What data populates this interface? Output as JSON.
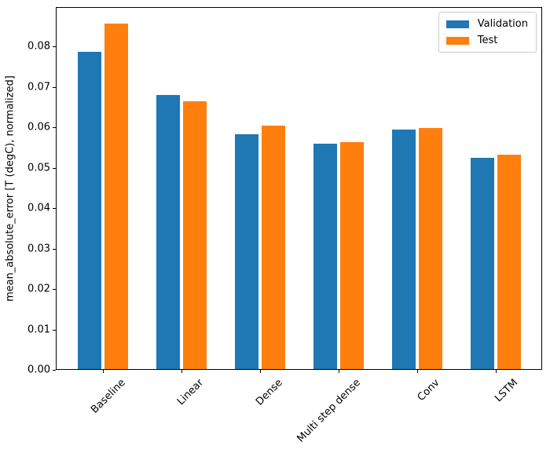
{
  "chart_data": {
    "type": "bar",
    "categories": [
      "Baseline",
      "Linear",
      "Dense",
      "Multi step dense",
      "Conv",
      "LSTM"
    ],
    "series": [
      {
        "name": "Validation",
        "color": "#1f77b4",
        "values": [
          0.0785,
          0.0679,
          0.0582,
          0.0557,
          0.0593,
          0.0522
        ]
      },
      {
        "name": "Test",
        "color": "#ff7f0e",
        "values": [
          0.0855,
          0.0663,
          0.0603,
          0.0561,
          0.0596,
          0.0531
        ]
      }
    ],
    "title": "",
    "xlabel": "",
    "ylabel": "mean_absolute_error [T (degC), normalized]",
    "ylim": [
      0,
      0.0898
    ],
    "xlim": [
      -0.597,
      5.593
    ],
    "yticks": [
      0.0,
      0.01,
      0.02,
      0.03,
      0.04,
      0.05,
      0.06,
      0.07,
      0.08
    ],
    "ytick_labels": [
      "0.00",
      "0.01",
      "0.02",
      "0.03",
      "0.04",
      "0.05",
      "0.06",
      "0.07",
      "0.08"
    ],
    "xtick_label_rotation_deg": 45,
    "bar_width": 0.3,
    "bar_offsets": [
      -0.17,
      0.17
    ],
    "grid": false,
    "legend_position": "upper right"
  }
}
